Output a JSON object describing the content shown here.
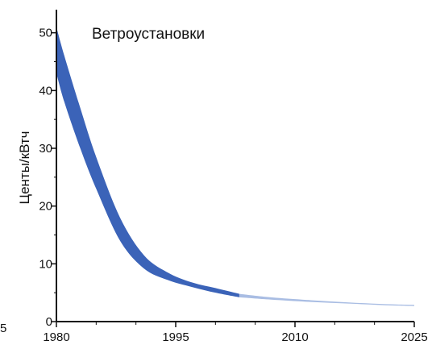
{
  "chart_data": {
    "type": "area",
    "title": "Ветроустановки",
    "ylabel": "Центы/кВтч",
    "xlabel": "",
    "xlim": [
      1980,
      2025
    ],
    "ylim": [
      0,
      54
    ],
    "x_ticks": [
      1980,
      1995,
      2010,
      2025
    ],
    "y_ticks": [
      0,
      10,
      20,
      30,
      40,
      50
    ],
    "edge_label": "5",
    "grid": false,
    "legend": "none",
    "series": [
      {
        "kind": "band",
        "color": "#3b63b8",
        "x": [
          1980,
          1981,
          1983,
          1985,
          1988,
          1991,
          1994,
          1997,
          2000,
          2003
        ],
        "upper": [
          51,
          46,
          37,
          28.5,
          18,
          11.5,
          8.5,
          6.8,
          5.8,
          4.8
        ],
        "lower": [
          43,
          38,
          30,
          23,
          14,
          9.2,
          7.2,
          6.0,
          5.0,
          4.2
        ]
      },
      {
        "kind": "band",
        "color": "#a9bde3",
        "x": [
          2003,
          2007,
          2012,
          2017,
          2022,
          2025
        ],
        "upper": [
          4.8,
          4.2,
          3.7,
          3.3,
          3.0,
          2.9
        ],
        "lower": [
          4.2,
          3.8,
          3.4,
          3.1,
          2.8,
          2.7
        ]
      }
    ]
  }
}
